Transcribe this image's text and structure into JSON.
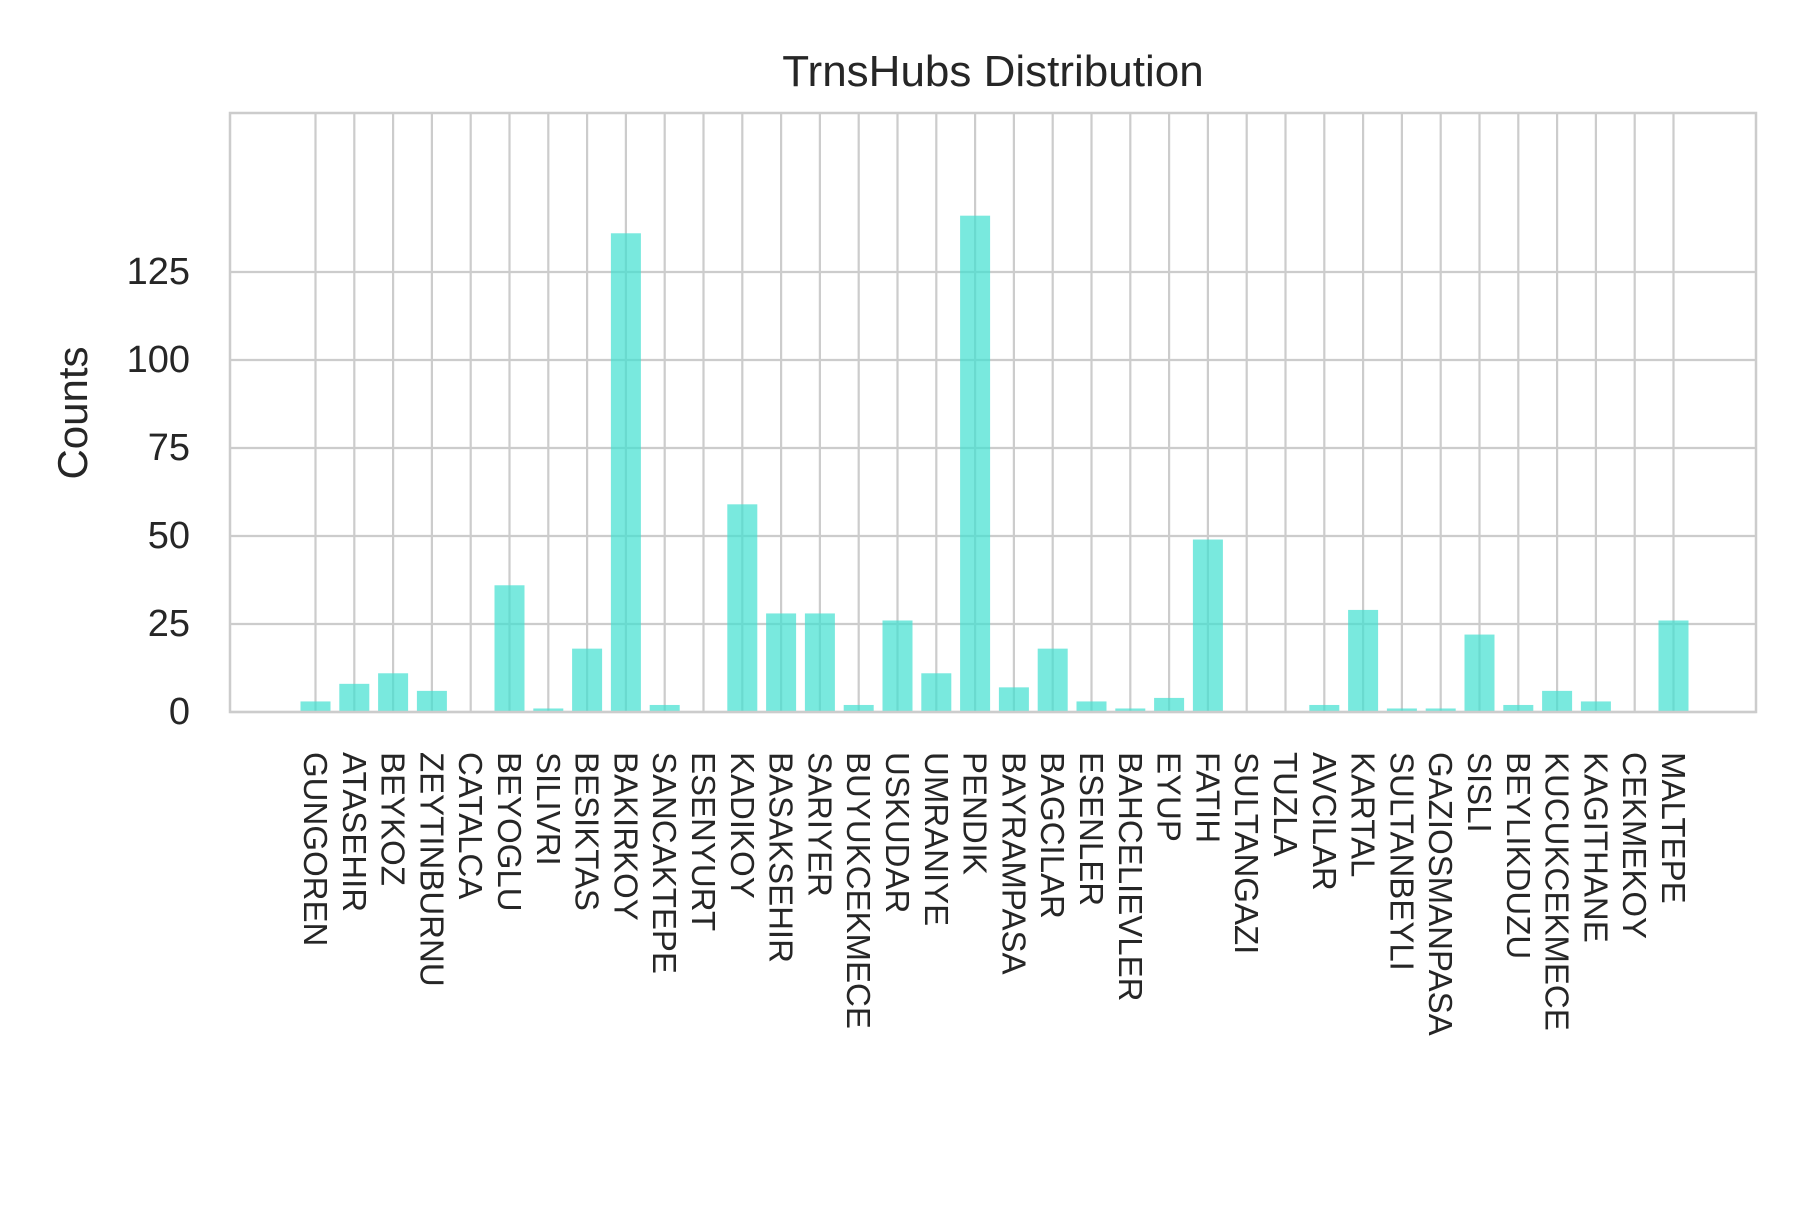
{
  "chart_data": {
    "type": "bar",
    "title": "TrnsHubs Distribution",
    "xlabel": "",
    "ylabel": "Counts",
    "ylim": [
      0,
      150
    ],
    "yticks": [
      0,
      25,
      50,
      75,
      100,
      125
    ],
    "grid": true,
    "legend": "none",
    "categories": [
      "GUNGOREN",
      "ATASEHIR",
      "BEYKOZ",
      "ZEYTINBURNU",
      "CATALCA",
      "BEYOGLU",
      "SILIVRI",
      "BESIKTAS",
      "BAKIRKOY",
      "SANCAKTEPE",
      "ESENYURT",
      "KADIKOY",
      "BASAKSEHIR",
      "SARIYER",
      "BUYUKCEKMECE",
      "USKUDAR",
      "UMRANIYE",
      "PENDIK",
      "BAYRAMPASA",
      "BAGCILAR",
      "ESENLER",
      "BAHCELIEVLER",
      "EYUP",
      "FATIH",
      "SULTANGAZI",
      "TUZLA",
      "AVCILAR",
      "KARTAL",
      "SULTANBEYLI",
      "GAZIOSMANPASA",
      "SISLI",
      "BEYLIKDUZU",
      "KUCUKCEKMECE",
      "KAGITHANE",
      "CEKMEKOY",
      "MALTEPE"
    ],
    "values": [
      3,
      8,
      11,
      6,
      0,
      36,
      1,
      18,
      136,
      2,
      0,
      59,
      28,
      28,
      2,
      26,
      11,
      141,
      7,
      18,
      3,
      1,
      4,
      49,
      0,
      0,
      2,
      29,
      1,
      1,
      22,
      2,
      6,
      3,
      0,
      26
    ],
    "bar_color": "#40E0D0",
    "bar_opacity": 0.7,
    "grid_color": "#cccccc",
    "frame_color": "#cccccc"
  }
}
